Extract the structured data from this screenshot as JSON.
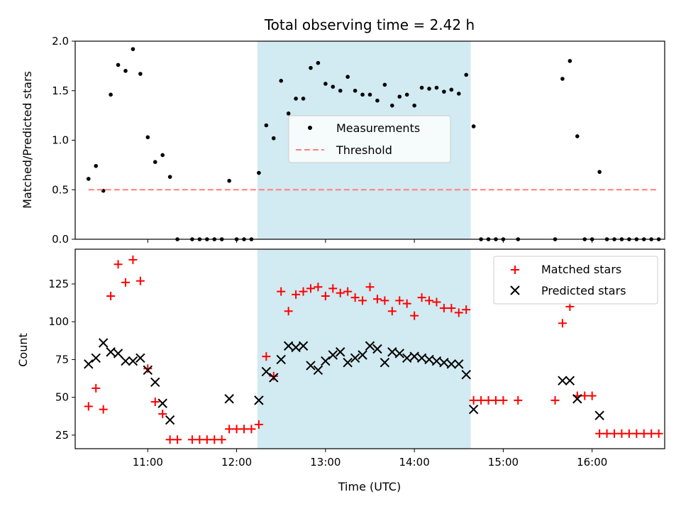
{
  "chart_data": [
    {
      "type": "scatter",
      "title": "Total observing time = 2.42 h",
      "ylabel": "Matched/Predicted stars",
      "xlabel": "",
      "xlim": [
        "10:11",
        "16:49"
      ],
      "ylim": [
        0,
        2.0
      ],
      "yticks": [
        0.0,
        0.5,
        1.0,
        1.5,
        2.0
      ],
      "ytick_labels": [
        "0.0",
        "0.5",
        "1.0",
        "1.5",
        "2.0"
      ],
      "shaded_interval": [
        "12:14",
        "14:38"
      ],
      "shade_color": "#add8e6",
      "legend_position": "center",
      "series": [
        {
          "name": "Measurements",
          "marker": "dot",
          "color": "#000000",
          "points": [
            [
              "10:20",
              0.61
            ],
            [
              "10:25",
              0.74
            ],
            [
              "10:30",
              0.49
            ],
            [
              "10:35",
              1.46
            ],
            [
              "10:40",
              1.76
            ],
            [
              "10:45",
              1.7
            ],
            [
              "10:50",
              1.92
            ],
            [
              "10:55",
              1.67
            ],
            [
              "11:00",
              1.03
            ],
            [
              "11:05",
              0.78
            ],
            [
              "11:10",
              0.85
            ],
            [
              "11:15",
              0.63
            ],
            [
              "11:20",
              0.0
            ],
            [
              "11:30",
              0.0
            ],
            [
              "11:35",
              0.0
            ],
            [
              "11:40",
              0.0
            ],
            [
              "11:45",
              0.0
            ],
            [
              "11:50",
              0.0
            ],
            [
              "11:55",
              0.59
            ],
            [
              "12:00",
              0.0
            ],
            [
              "12:05",
              0.0
            ],
            [
              "12:10",
              0.0
            ],
            [
              "12:15",
              0.67
            ],
            [
              "12:20",
              1.15
            ],
            [
              "12:25",
              1.02
            ],
            [
              "12:30",
              1.6
            ],
            [
              "12:35",
              1.27
            ],
            [
              "12:40",
              1.42
            ],
            [
              "12:45",
              1.42
            ],
            [
              "12:50",
              1.73
            ],
            [
              "12:55",
              1.78
            ],
            [
              "13:00",
              1.57
            ],
            [
              "13:05",
              1.54
            ],
            [
              "13:10",
              1.5
            ],
            [
              "13:15",
              1.64
            ],
            [
              "13:20",
              1.5
            ],
            [
              "13:25",
              1.46
            ],
            [
              "13:30",
              1.46
            ],
            [
              "13:35",
              1.4
            ],
            [
              "13:40",
              1.56
            ],
            [
              "13:45",
              1.35
            ],
            [
              "13:50",
              1.44
            ],
            [
              "13:55",
              1.46
            ],
            [
              "14:00",
              1.35
            ],
            [
              "14:05",
              1.53
            ],
            [
              "14:10",
              1.52
            ],
            [
              "14:15",
              1.53
            ],
            [
              "14:20",
              1.49
            ],
            [
              "14:25",
              1.51
            ],
            [
              "14:30",
              1.47
            ],
            [
              "14:35",
              1.66
            ],
            [
              "14:40",
              1.14
            ],
            [
              "14:45",
              0.0
            ],
            [
              "14:50",
              0.0
            ],
            [
              "14:55",
              0.0
            ],
            [
              "15:00",
              0.0
            ],
            [
              "15:10",
              0.0
            ],
            [
              "15:35",
              0.0
            ],
            [
              "15:40",
              1.62
            ],
            [
              "15:45",
              1.8
            ],
            [
              "15:50",
              1.04
            ],
            [
              "15:55",
              0.0
            ],
            [
              "16:00",
              0.0
            ],
            [
              "16:05",
              0.68
            ],
            [
              "16:10",
              0.0
            ],
            [
              "16:15",
              0.0
            ],
            [
              "16:20",
              0.0
            ],
            [
              "16:25",
              0.0
            ],
            [
              "16:30",
              0.0
            ],
            [
              "16:35",
              0.0
            ],
            [
              "16:40",
              0.0
            ],
            [
              "16:45",
              0.0
            ]
          ]
        },
        {
          "name": "Threshold",
          "line_style": "dashed",
          "color": "#ff7f7f",
          "points": [
            [
              "10:20",
              0.5
            ],
            [
              "16:45",
              0.5
            ]
          ]
        }
      ]
    },
    {
      "type": "scatter",
      "title": "",
      "ylabel": "Count",
      "xlabel": "Time (UTC)",
      "xlim": [
        "10:11",
        "16:49"
      ],
      "ylim": [
        16,
        148
      ],
      "yticks": [
        25,
        50,
        75,
        100,
        125
      ],
      "ytick_labels": [
        "25",
        "50",
        "75",
        "100",
        "125"
      ],
      "xticks": [
        "11:00",
        "12:00",
        "13:00",
        "14:00",
        "15:00",
        "16:00"
      ],
      "xtick_labels": [
        "11:00",
        "12:00",
        "13:00",
        "14:00",
        "15:00",
        "16:00"
      ],
      "shaded_interval": [
        "12:14",
        "14:38"
      ],
      "shade_color": "#add8e6",
      "legend_position": "upper right",
      "series": [
        {
          "name": "Matched stars",
          "marker": "plus",
          "color": "#ff0000",
          "points": [
            [
              "10:20",
              44
            ],
            [
              "10:25",
              56
            ],
            [
              "10:30",
              42
            ],
            [
              "10:35",
              117
            ],
            [
              "10:40",
              138
            ],
            [
              "10:45",
              126
            ],
            [
              "10:50",
              141
            ],
            [
              "10:55",
              127
            ],
            [
              "11:00",
              69
            ],
            [
              "11:05",
              47
            ],
            [
              "11:10",
              39
            ],
            [
              "11:15",
              22
            ],
            [
              "11:20",
              22
            ],
            [
              "11:30",
              22
            ],
            [
              "11:35",
              22
            ],
            [
              "11:40",
              22
            ],
            [
              "11:45",
              22
            ],
            [
              "11:50",
              22
            ],
            [
              "11:55",
              29
            ],
            [
              "12:00",
              29
            ],
            [
              "12:05",
              29
            ],
            [
              "12:10",
              29
            ],
            [
              "12:15",
              32
            ],
            [
              "12:20",
              77
            ],
            [
              "12:25",
              64
            ],
            [
              "12:30",
              120
            ],
            [
              "12:35",
              107
            ],
            [
              "12:40",
              118
            ],
            [
              "12:45",
              120
            ],
            [
              "12:50",
              122
            ],
            [
              "12:55",
              123
            ],
            [
              "13:00",
              117
            ],
            [
              "13:05",
              122
            ],
            [
              "13:10",
              119
            ],
            [
              "13:15",
              120
            ],
            [
              "13:20",
              116
            ],
            [
              "13:25",
              114
            ],
            [
              "13:30",
              123
            ],
            [
              "13:35",
              115
            ],
            [
              "13:40",
              114
            ],
            [
              "13:45",
              107
            ],
            [
              "13:50",
              114
            ],
            [
              "13:55",
              112
            ],
            [
              "14:00",
              104
            ],
            [
              "14:05",
              116
            ],
            [
              "14:10",
              114
            ],
            [
              "14:15",
              113
            ],
            [
              "14:20",
              109
            ],
            [
              "14:25",
              109
            ],
            [
              "14:30",
              106
            ],
            [
              "14:35",
              108
            ],
            [
              "14:40",
              48
            ],
            [
              "14:45",
              48
            ],
            [
              "14:50",
              48
            ],
            [
              "14:55",
              48
            ],
            [
              "15:00",
              48
            ],
            [
              "15:10",
              48
            ],
            [
              "15:35",
              48
            ],
            [
              "15:40",
              99
            ],
            [
              "15:45",
              110
            ],
            [
              "15:50",
              51
            ],
            [
              "15:55",
              51
            ],
            [
              "16:00",
              51
            ],
            [
              "16:05",
              26
            ],
            [
              "16:10",
              26
            ],
            [
              "16:15",
              26
            ],
            [
              "16:20",
              26
            ],
            [
              "16:25",
              26
            ],
            [
              "16:30",
              26
            ],
            [
              "16:35",
              26
            ],
            [
              "16:40",
              26
            ],
            [
              "16:45",
              26
            ]
          ]
        },
        {
          "name": "Predicted stars",
          "marker": "x",
          "color": "#000000",
          "points": [
            [
              "10:20",
              72
            ],
            [
              "10:25",
              76
            ],
            [
              "10:30",
              86
            ],
            [
              "10:35",
              80
            ],
            [
              "10:40",
              79
            ],
            [
              "10:45",
              74
            ],
            [
              "10:50",
              74
            ],
            [
              "10:55",
              76
            ],
            [
              "11:00",
              68
            ],
            [
              "11:05",
              60
            ],
            [
              "11:10",
              46
            ],
            [
              "11:15",
              35
            ],
            [
              "11:55",
              49
            ],
            [
              "12:15",
              48
            ],
            [
              "12:20",
              67
            ],
            [
              "12:25",
              63
            ],
            [
              "12:30",
              75
            ],
            [
              "12:35",
              84
            ],
            [
              "12:40",
              83
            ],
            [
              "12:45",
              84
            ],
            [
              "12:50",
              71
            ],
            [
              "12:55",
              68
            ],
            [
              "13:00",
              74
            ],
            [
              "13:05",
              78
            ],
            [
              "13:10",
              80
            ],
            [
              "13:15",
              73
            ],
            [
              "13:20",
              76
            ],
            [
              "13:25",
              78
            ],
            [
              "13:30",
              84
            ],
            [
              "13:35",
              82
            ],
            [
              "13:40",
              73
            ],
            [
              "13:45",
              80
            ],
            [
              "13:50",
              79
            ],
            [
              "13:55",
              76
            ],
            [
              "14:00",
              77
            ],
            [
              "14:05",
              76
            ],
            [
              "14:10",
              75
            ],
            [
              "14:15",
              74
            ],
            [
              "14:20",
              73
            ],
            [
              "14:25",
              72
            ],
            [
              "14:30",
              72
            ],
            [
              "14:35",
              65
            ],
            [
              "14:40",
              42
            ],
            [
              "15:40",
              61
            ],
            [
              "15:45",
              61
            ],
            [
              "15:50",
              49
            ],
            [
              "16:05",
              38
            ]
          ]
        }
      ]
    }
  ]
}
